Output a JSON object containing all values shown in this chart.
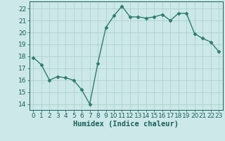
{
  "x": [
    0,
    1,
    2,
    3,
    4,
    5,
    6,
    7,
    8,
    9,
    10,
    11,
    12,
    13,
    14,
    15,
    16,
    17,
    18,
    19,
    20,
    21,
    22,
    23
  ],
  "y": [
    17.9,
    17.3,
    16.0,
    16.3,
    16.2,
    16.0,
    15.2,
    14.0,
    17.4,
    20.4,
    21.4,
    22.2,
    21.3,
    21.3,
    21.2,
    21.3,
    21.5,
    21.0,
    21.6,
    21.6,
    19.9,
    19.5,
    19.2,
    18.4
  ],
  "line_color": "#2e7d6e",
  "marker": "D",
  "marker_size": 2.5,
  "bg_color": "#cce8e8",
  "grid_color": "#aacccc",
  "xlabel": "Humidex (Indice chaleur)",
  "ylim": [
    13.5,
    22.6
  ],
  "xlim": [
    -0.5,
    23.5
  ],
  "yticks": [
    14,
    15,
    16,
    17,
    18,
    19,
    20,
    21,
    22
  ],
  "xticks": [
    0,
    1,
    2,
    3,
    4,
    5,
    6,
    7,
    8,
    9,
    10,
    11,
    12,
    13,
    14,
    15,
    16,
    17,
    18,
    19,
    20,
    21,
    22,
    23
  ],
  "tick_color": "#1a5f5a",
  "xlabel_fontsize": 7.5,
  "tick_fontsize": 6.5,
  "linewidth": 1.0
}
